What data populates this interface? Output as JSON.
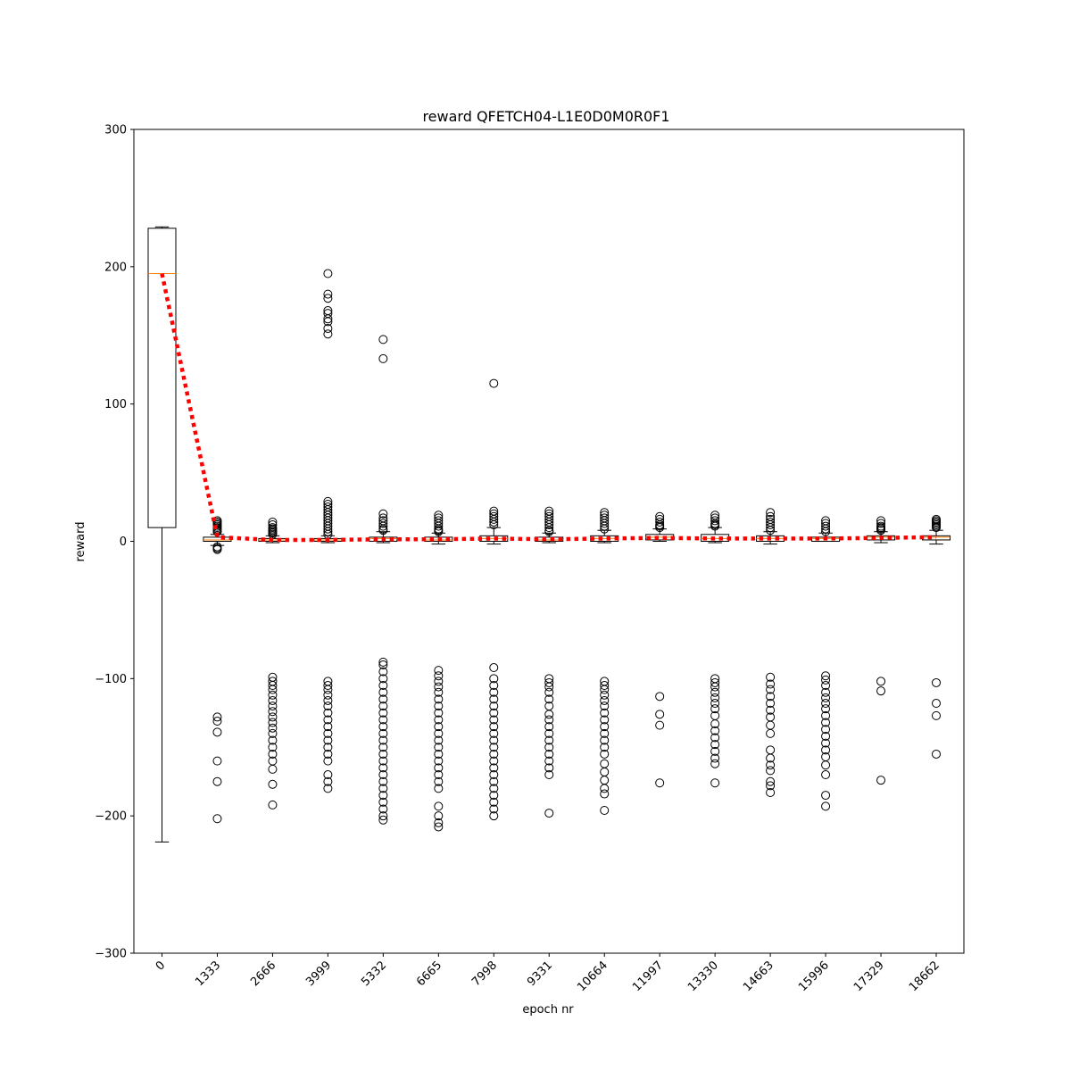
{
  "chart_data": {
    "type": "box",
    "title": "reward QFETCH04-L1E0D0M0R0F1",
    "xlabel": "epoch nr",
    "ylabel": "reward",
    "ylim": [
      -300,
      300
    ],
    "yticks": [
      -300,
      -200,
      -100,
      0,
      100,
      200,
      300
    ],
    "ytick_labels": [
      "−300",
      "−200",
      "−100",
      "0",
      "100",
      "200",
      "300"
    ],
    "categories": [
      "0",
      "1333",
      "2666",
      "3999",
      "5332",
      "6665",
      "7998",
      "9331",
      "10664",
      "11997",
      "13330",
      "14663",
      "15996",
      "17329",
      "18662"
    ],
    "colors": {
      "median": "#ff7f0e",
      "mean_line": "#ff0000",
      "box": "#000000"
    },
    "boxes": [
      {
        "category": "0",
        "q1": 10,
        "median": 195,
        "q3": 228,
        "whisker_low": -219,
        "whisker_high": 229,
        "outliers": []
      },
      {
        "category": "1333",
        "q1": 0,
        "median": 1,
        "q3": 3,
        "whisker_low": -3,
        "whisker_high": 5,
        "outliers": [
          15,
          14,
          13,
          12,
          11,
          10,
          9,
          8,
          7,
          -4,
          -5,
          -6,
          -128,
          -131,
          -139,
          -160,
          -175,
          -202
        ]
      },
      {
        "category": "2666",
        "q1": 0,
        "median": 1,
        "q3": 2,
        "whisker_low": -1,
        "whisker_high": 4,
        "outliers": [
          14,
          12,
          10,
          9,
          8,
          7,
          6,
          5,
          -99,
          -102,
          -105,
          -108,
          -112,
          -116,
          -120,
          -124,
          -128,
          -132,
          -136,
          -140,
          -145,
          -150,
          -155,
          -160,
          -166,
          -177,
          -192
        ]
      },
      {
        "category": "3999",
        "q1": 0,
        "median": 1,
        "q3": 2,
        "whisker_low": -1,
        "whisker_high": 4,
        "outliers": [
          195,
          180,
          177,
          168,
          166,
          162,
          160,
          155,
          151,
          29,
          27,
          25,
          23,
          21,
          19,
          17,
          15,
          13,
          11,
          9,
          7,
          5,
          -102,
          -105,
          -108,
          -112,
          -116,
          -120,
          -125,
          -130,
          -135,
          -140,
          -145,
          -150,
          -155,
          -160,
          -170,
          -175,
          -180
        ]
      },
      {
        "category": "5332",
        "q1": 0,
        "median": 2,
        "q3": 3,
        "whisker_low": -1,
        "whisker_high": 7,
        "outliers": [
          147,
          133,
          20,
          17,
          15,
          13,
          11,
          9,
          8,
          -88,
          -90,
          -95,
          -100,
          -105,
          -110,
          -115,
          -120,
          -125,
          -130,
          -135,
          -140,
          -145,
          -150,
          -155,
          -160,
          -165,
          -170,
          -175,
          -180,
          -185,
          -190,
          -195,
          -200,
          -203
        ]
      },
      {
        "category": "6665",
        "q1": 0,
        "median": 1,
        "q3": 3,
        "whisker_low": -2,
        "whisker_high": 6,
        "outliers": [
          19,
          17,
          15,
          13,
          11,
          9,
          8,
          7,
          -94,
          -98,
          -102,
          -106,
          -110,
          -115,
          -120,
          -125,
          -130,
          -135,
          -140,
          -145,
          -150,
          -155,
          -160,
          -165,
          -170,
          -175,
          -180,
          -193,
          -200,
          -205,
          -208
        ]
      },
      {
        "category": "7998",
        "q1": 0,
        "median": 2,
        "q3": 4,
        "whisker_low": -2,
        "whisker_high": 10,
        "outliers": [
          115,
          22,
          20,
          18,
          16,
          14,
          12,
          -92,
          -100,
          -105,
          -110,
          -115,
          -120,
          -125,
          -130,
          -135,
          -140,
          -145,
          -150,
          -155,
          -160,
          -165,
          -170,
          -175,
          -180,
          -185,
          -190,
          -195,
          -200
        ]
      },
      {
        "category": "9331",
        "q1": 0,
        "median": 1,
        "q3": 3,
        "whisker_low": -1,
        "whisker_high": 6,
        "outliers": [
          22,
          20,
          18,
          16,
          14,
          12,
          10,
          8,
          7,
          -100,
          -103,
          -106,
          -110,
          -115,
          -120,
          -126,
          -130,
          -135,
          -140,
          -145,
          -150,
          -155,
          -160,
          -165,
          -170,
          -198
        ]
      },
      {
        "category": "10664",
        "q1": 0,
        "median": 2,
        "q3": 4,
        "whisker_low": -1,
        "whisker_high": 8,
        "outliers": [
          21,
          19,
          17,
          15,
          13,
          11,
          9,
          -102,
          -105,
          -108,
          -112,
          -116,
          -120,
          -125,
          -130,
          -135,
          -140,
          -145,
          -150,
          -155,
          -162,
          -168,
          -174,
          -180,
          -184,
          -196
        ]
      },
      {
        "category": "11997",
        "q1": 1,
        "median": 3,
        "q3": 5,
        "whisker_low": 0,
        "whisker_high": 9,
        "outliers": [
          18,
          16,
          14,
          12,
          11,
          10,
          -113,
          -126,
          -134,
          -176
        ]
      },
      {
        "category": "13330",
        "q1": 0,
        "median": 2,
        "q3": 5,
        "whisker_low": -1,
        "whisker_high": 10,
        "outliers": [
          19,
          17,
          15,
          13,
          12,
          11,
          -100,
          -103,
          -106,
          -110,
          -114,
          -118,
          -122,
          -127,
          -133,
          -138,
          -143,
          -148,
          -153,
          -158,
          -162,
          -176
        ]
      },
      {
        "category": "14663",
        "q1": 0,
        "median": 2,
        "q3": 4,
        "whisker_low": -2,
        "whisker_high": 7,
        "outliers": [
          21,
          18,
          16,
          14,
          12,
          10,
          8,
          -99,
          -104,
          -108,
          -113,
          -118,
          -123,
          -128,
          -134,
          -140,
          -152,
          -158,
          -163,
          -167,
          -175,
          -178,
          -183
        ]
      },
      {
        "category": "15996",
        "q1": 0,
        "median": 2,
        "q3": 3,
        "whisker_low": 0,
        "whisker_high": 6,
        "outliers": [
          15,
          13,
          11,
          9,
          7,
          -98,
          -101,
          -105,
          -110,
          -114,
          -118,
          -122,
          -127,
          -132,
          -137,
          -142,
          -147,
          -152,
          -157,
          -163,
          -170,
          -185,
          -193
        ]
      },
      {
        "category": "17329",
        "q1": 1,
        "median": 3,
        "q3": 4,
        "whisker_low": -1,
        "whisker_high": 7,
        "outliers": [
          15,
          13,
          11,
          10,
          9,
          8,
          -102,
          -109,
          -174
        ]
      },
      {
        "category": "18662",
        "q1": 1,
        "median": 3,
        "q3": 4,
        "whisker_low": -2,
        "whisker_high": 8,
        "outliers": [
          16,
          15,
          14,
          13,
          12,
          11,
          10,
          -103,
          -118,
          -127,
          -155
        ]
      }
    ],
    "mean_line": {
      "name": "",
      "values": [
        195,
        3,
        1,
        1,
        1.5,
        1.5,
        2,
        1.5,
        2,
        2.5,
        2,
        2,
        2,
        2.5,
        3
      ]
    },
    "grid": false
  }
}
